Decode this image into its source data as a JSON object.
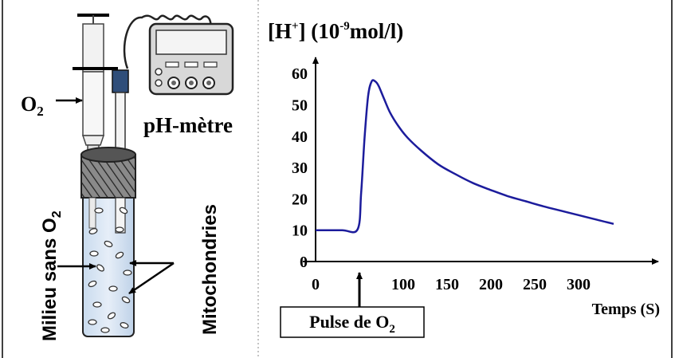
{
  "left_panel": {
    "o2_label": "O",
    "o2_sub": "2",
    "ph_meter_label": "pH-mètre",
    "medium_label": "Milieu sans O",
    "medium_sub": "2",
    "mitochondria_label": "Mitochondries"
  },
  "chart_data": {
    "type": "line",
    "title_main": "[H",
    "title_sup": "+",
    "title_rest": "] (10",
    "title_exp": "-9",
    "title_unit": "mol/l)",
    "xlabel": "Temps (S)",
    "x_ticks": [
      "0",
      "100",
      "150",
      "200",
      "250",
      "300"
    ],
    "x_tick_values": [
      0,
      100,
      150,
      200,
      250,
      300
    ],
    "y_ticks": [
      "0",
      "10",
      "20",
      "30",
      "40",
      "50",
      "60"
    ],
    "y_tick_values": [
      0,
      10,
      20,
      30,
      40,
      50,
      60
    ],
    "xlim": [
      0,
      350
    ],
    "ylim": [
      0,
      65
    ],
    "series_color": "#1c1c9c",
    "annotation": {
      "text": "Pulse de O",
      "sub": "2",
      "x": 50
    },
    "series": [
      {
        "x": [
          0,
          30,
          48,
          52,
          56,
          60,
          64,
          68,
          72,
          78,
          85,
          95,
          105,
          120,
          140,
          160,
          180,
          200,
          220,
          240,
          260,
          280,
          300,
          320,
          340
        ],
        "y": [
          10,
          10,
          10.3,
          22,
          40,
          53,
          57.5,
          57.5,
          56,
          52,
          47.5,
          43,
          39.5,
          35.5,
          31,
          27.8,
          25,
          22.8,
          20.8,
          19.2,
          17.6,
          16.2,
          14.8,
          13.4,
          12
        ]
      }
    ]
  }
}
